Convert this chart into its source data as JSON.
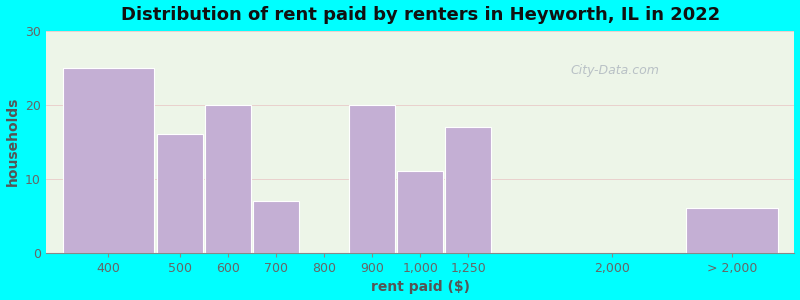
{
  "title": "Distribution of rent paid by renters in Heyworth, IL in 2022",
  "xlabel": "rent paid ($)",
  "ylabel": "households",
  "bar_color": "#c4afd4",
  "bar_edge_color": "#c4afd4",
  "background_color": "#00ffff",
  "plot_bg_color": "#edf5e8",
  "categories": [
    "400",
    "500",
    "600",
    "700",
    "800",
    "900",
    "1,000",
    "1,250",
    "2,000",
    "> 2,000"
  ],
  "values": [
    25,
    16,
    20,
    7,
    0,
    20,
    11,
    17,
    0,
    6
  ],
  "bar_positions": [
    0,
    2,
    3,
    4,
    5,
    6,
    7,
    8,
    11,
    13
  ],
  "bar_widths": [
    2,
    1,
    1,
    1,
    1,
    1,
    1,
    1,
    1,
    2
  ],
  "ylim": [
    0,
    30
  ],
  "yticks": [
    0,
    10,
    20,
    30
  ],
  "title_fontsize": 13,
  "axis_label_fontsize": 10,
  "tick_fontsize": 9,
  "watermark_text": "City-Data.com"
}
